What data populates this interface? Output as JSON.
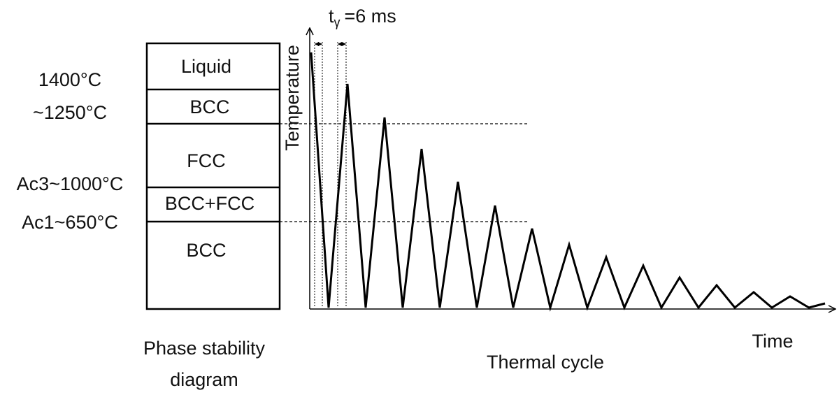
{
  "phases": [
    "Liquid",
    "BCC",
    "FCC",
    "BCC+FCC",
    "BCC"
  ],
  "temperatures": [
    "1400°C",
    "~1250°C",
    "Ac3~1000°C",
    "Ac1~650°C"
  ],
  "left_caption": [
    "Phase stability",
    "diagram"
  ],
  "y_axis_label": "Temperature",
  "x_axis_label": "Time",
  "right_caption": "Thermal cycle",
  "annotation": {
    "symbol": "t",
    "subscript": "γ",
    "text": "=6 ms"
  }
}
